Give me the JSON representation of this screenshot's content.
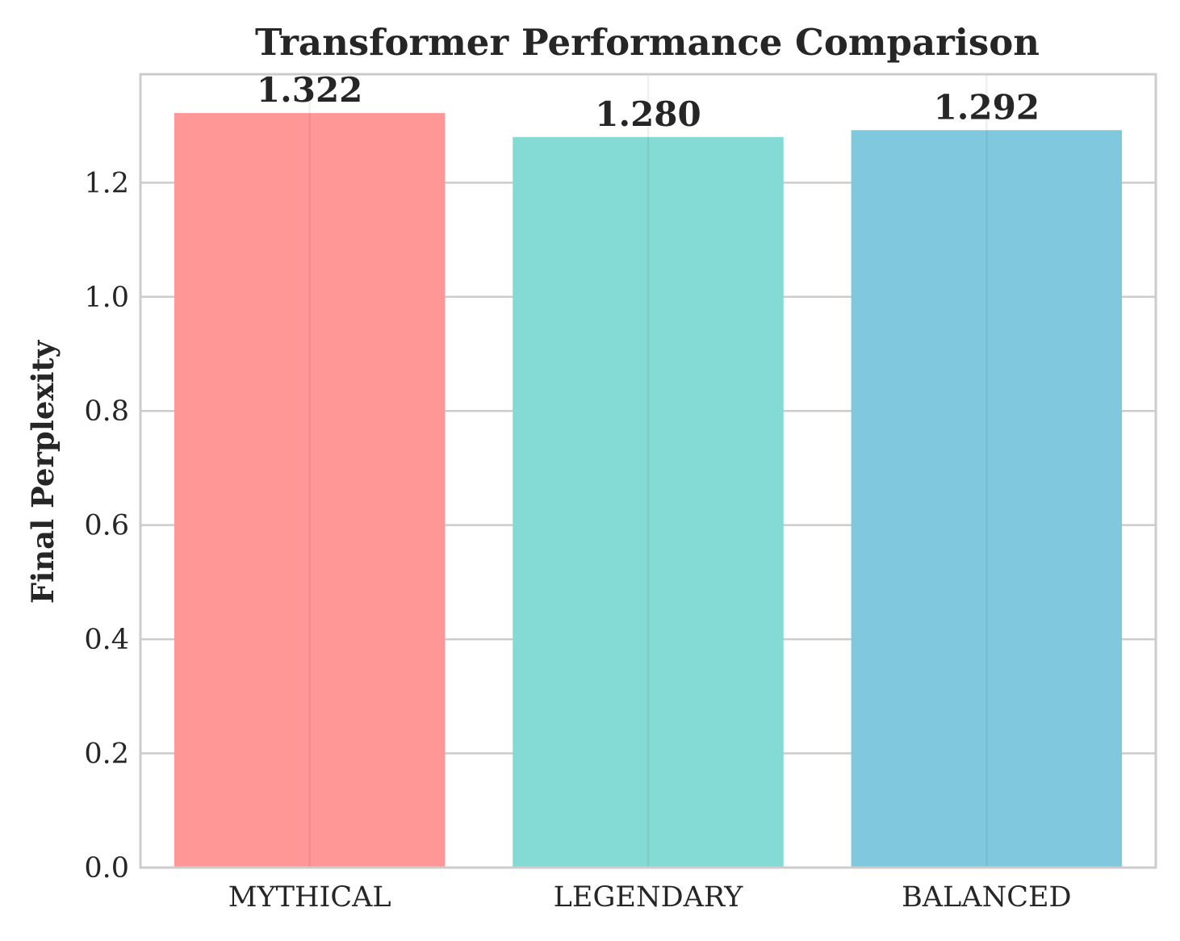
{
  "chart_data": {
    "type": "bar",
    "title": "Transformer Performance Comparison",
    "xlabel": "",
    "ylabel": "Final Perplexity",
    "categories": [
      "MYTHICAL",
      "LEGENDARY",
      "BALANCED"
    ],
    "values": [
      1.322,
      1.28,
      1.292
    ],
    "value_labels": [
      "1.322",
      "1.280",
      "1.292"
    ],
    "bar_colors": [
      "#ff9797",
      "#84dad4",
      "#7fc8dd"
    ],
    "ylim": [
      0,
      1.39
    ],
    "yticks": [
      0.0,
      0.2,
      0.4,
      0.6,
      0.8,
      1.0,
      1.2
    ],
    "ytick_labels": [
      "0.0",
      "0.2",
      "0.4",
      "0.6",
      "0.8",
      "1.0",
      "1.2"
    ],
    "grid": true,
    "legend": null
  }
}
